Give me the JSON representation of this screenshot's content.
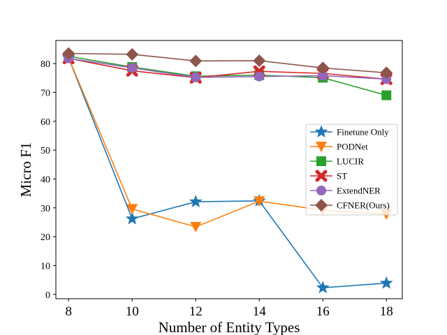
{
  "chart_data": {
    "type": "line",
    "title": "",
    "xlabel": "Number of Entity Types",
    "ylabel": "Micro F1",
    "x": [
      8,
      10,
      12,
      14,
      16,
      18
    ],
    "xlim": [
      7.6,
      18.5
    ],
    "ylim": [
      -1.5,
      88
    ],
    "xticks": [
      8,
      10,
      12,
      14,
      16,
      18
    ],
    "yticks": [
      0,
      10,
      20,
      30,
      40,
      50,
      60,
      70,
      80
    ],
    "legend_position": "center-right",
    "series": [
      {
        "name": "Finetune Only",
        "color": "#1f77b4",
        "marker": "star",
        "values": [
          82.0,
          26.2,
          32.1,
          32.4,
          2.3,
          3.9
        ]
      },
      {
        "name": "PODNet",
        "color": "#ff7f0e",
        "marker": "triangle-down",
        "values": [
          82.0,
          29.6,
          23.4,
          32.3,
          29.2,
          27.8
        ]
      },
      {
        "name": "LUCIR",
        "color": "#2ca02c",
        "marker": "square",
        "values": [
          82.5,
          78.8,
          75.6,
          76.0,
          75.1,
          69.0
        ]
      },
      {
        "name": "ST",
        "color": "#d62728",
        "marker": "x",
        "values": [
          81.8,
          77.5,
          75.1,
          77.3,
          76.6,
          74.6
        ]
      },
      {
        "name": "ExtendNER",
        "color": "#9467bd",
        "marker": "circle",
        "values": [
          81.8,
          78.5,
          75.2,
          75.5,
          75.8,
          74.6
        ]
      },
      {
        "name": "CFNER(Ours)",
        "color": "#8c564b",
        "marker": "diamond",
        "values": [
          83.5,
          83.2,
          80.9,
          81.0,
          78.5,
          76.8
        ]
      }
    ]
  }
}
